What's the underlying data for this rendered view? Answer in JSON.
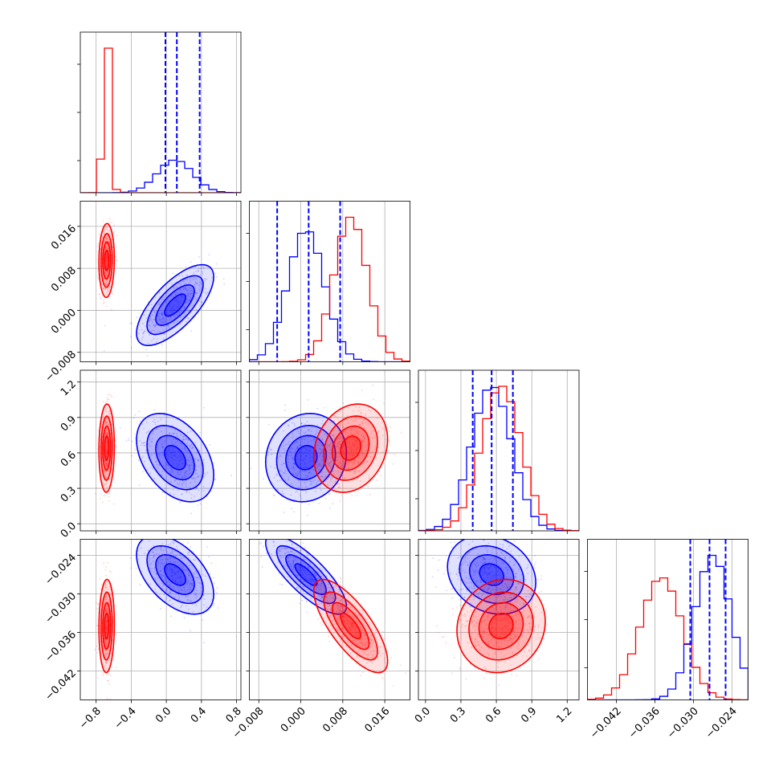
{
  "chart_data": {
    "type": "corner",
    "grid": true,
    "series": [
      {
        "name": "",
        "color": "#0000ff",
        "mean": [
          0.1,
          0.001,
          0.56,
          -0.027
        ],
        "sd": [
          0.2,
          0.0035,
          0.17,
          0.0028
        ],
        "corr": [
          [
            1,
            0.7,
            -0.4,
            -0.5
          ],
          [
            0.7,
            1,
            0.1,
            -0.8
          ],
          [
            -0.4,
            0.1,
            1,
            -0.2
          ],
          [
            -0.5,
            -0.8,
            -0.2,
            1
          ]
        ]
      },
      {
        "name": "",
        "color": "#ff0000",
        "mean": [
          -0.68,
          0.0095,
          0.64,
          -0.035
        ],
        "sd": [
          0.04,
          0.0032,
          0.17,
          0.0033
        ],
        "corr": [
          [
            1,
            0.05,
            0.05,
            0.05
          ],
          [
            0.05,
            1,
            0.2,
            -0.75
          ],
          [
            0.05,
            0.2,
            1,
            0.1
          ],
          [
            0.05,
            -0.75,
            0.1,
            1
          ]
        ]
      }
    ],
    "quantile_lines": [
      {
        "param": 0,
        "values": [
          -0.01,
          0.12,
          0.38
        ]
      },
      {
        "param": 1,
        "values": [
          -0.0045,
          0.0015,
          0.0075
        ]
      },
      {
        "param": 2,
        "values": [
          0.4,
          0.56,
          0.74
        ]
      },
      {
        "param": 3,
        "values": [
          -0.0305,
          -0.0275,
          -0.025
        ]
      }
    ],
    "params": [
      {
        "range": [
          -0.98,
          0.85
        ],
        "ticks": [
          "−0.8",
          "−0.4",
          "0.0",
          "0.4",
          "0.8"
        ]
      },
      {
        "range": [
          -0.0098,
          0.0208
        ],
        "ticks": [
          "−0.008",
          "0.000",
          "0.008",
          "0.016"
        ]
      },
      {
        "range": [
          -0.06,
          1.3
        ],
        "ticks": [
          "0.0",
          "0.3",
          "0.6",
          "0.9",
          "1.2"
        ]
      },
      {
        "range": [
          -0.0465,
          -0.0215
        ],
        "ticks": [
          "−0.042",
          "−0.036",
          "−0.030",
          "−0.024"
        ]
      }
    ],
    "tick_values": [
      [
        -0.8,
        -0.4,
        0.0,
        0.4,
        0.8
      ],
      [
        -0.008,
        0.0,
        0.008,
        0.016
      ],
      [
        0.0,
        0.3,
        0.6,
        0.9,
        1.2
      ],
      [
        -0.042,
        -0.036,
        -0.03,
        -0.024
      ]
    ]
  }
}
